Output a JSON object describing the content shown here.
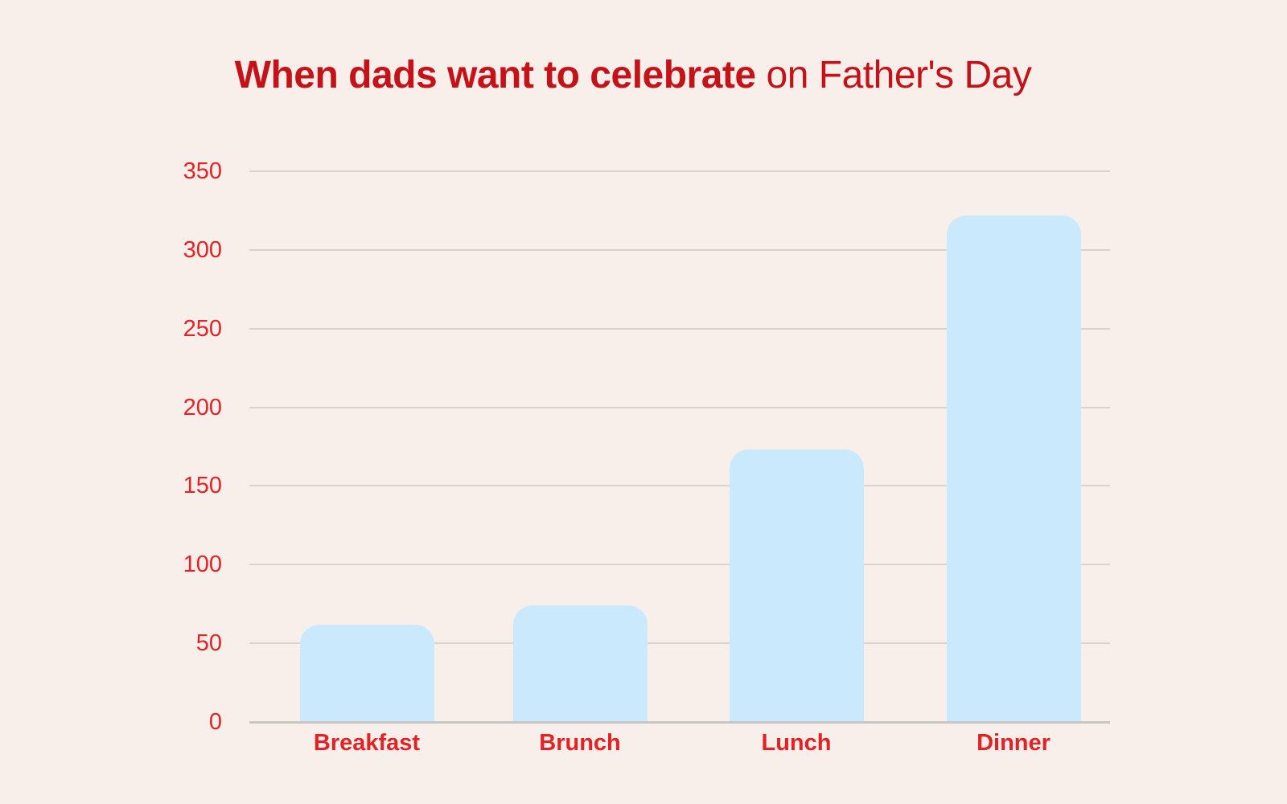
{
  "chart_data": {
    "type": "bar",
    "title_bold": "When dads want to celebrate",
    "title_regular": "on Father's Day",
    "categories": [
      "Breakfast",
      "Brunch",
      "Lunch",
      "Dinner"
    ],
    "values": [
      62,
      74,
      173,
      322
    ],
    "xlabel": "",
    "ylabel": "",
    "ylim": [
      0,
      350
    ],
    "yticks": [
      0,
      50,
      100,
      150,
      200,
      250,
      300,
      350
    ],
    "grid": "horizontal",
    "legend": "none",
    "colors": {
      "background": "#f8eeea",
      "bar": "#cbe9fc",
      "title": "#c41218",
      "tick_label": "#e32226",
      "gridline": "#d8d3d0",
      "axis_line": "#c9c5c2"
    }
  }
}
